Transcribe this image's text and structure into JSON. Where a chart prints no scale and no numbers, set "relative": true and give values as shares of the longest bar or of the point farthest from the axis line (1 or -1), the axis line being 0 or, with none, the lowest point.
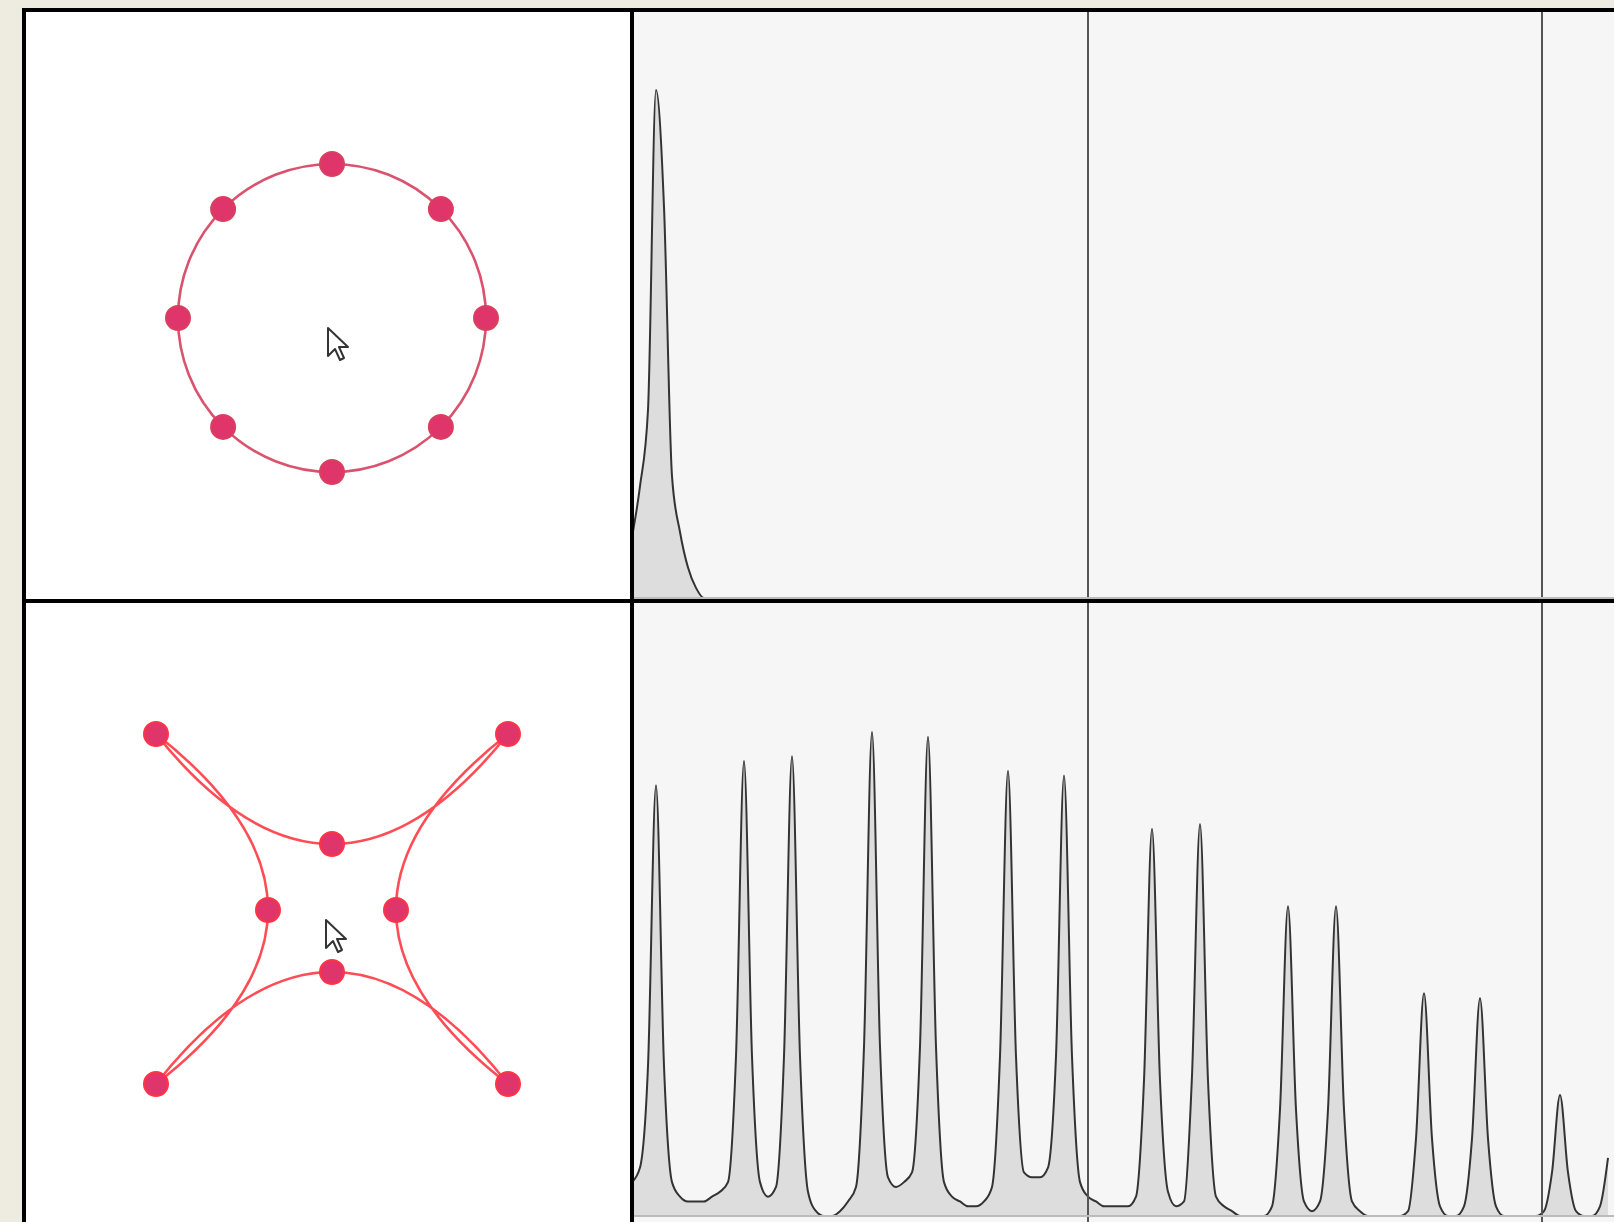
{
  "chart_data": [
    {
      "type": "area",
      "relative": true,
      "color": "#dddddd",
      "categories": [
        null,
        null,
        null,
        null,
        null,
        null,
        null,
        null,
        null,
        null,
        null,
        null,
        null,
        null,
        null,
        null,
        null,
        null,
        null,
        null,
        null,
        null,
        null,
        null,
        null,
        null,
        null,
        null,
        null,
        null,
        null,
        null,
        null,
        null,
        null,
        null,
        null,
        null,
        null,
        null,
        null,
        null,
        null,
        null,
        null,
        null,
        null,
        null,
        null,
        null,
        null,
        null,
        null,
        null,
        null,
        null,
        null,
        null,
        null,
        null,
        null,
        null,
        null,
        null,
        null,
        null,
        null,
        null,
        null,
        null,
        null,
        null,
        null,
        null,
        null,
        null,
        null,
        null,
        null,
        null,
        null,
        null,
        null,
        null,
        null,
        null,
        null,
        null,
        null,
        null,
        null,
        null,
        null,
        null,
        null,
        null,
        null,
        null,
        null,
        null,
        null,
        null,
        null,
        null,
        null,
        null,
        null,
        null,
        null,
        null,
        null,
        null,
        null,
        null,
        null,
        null,
        null,
        null,
        null,
        null,
        null,
        null,
        null
      ],
      "values": [
        0.12,
        0.22,
        0.37,
        1,
        0.77,
        0.24,
        0.13,
        0.06,
        0.02,
        0,
        0,
        0,
        0,
        0,
        0,
        0,
        0,
        0,
        0,
        0,
        0,
        0,
        0,
        0,
        0,
        0,
        0,
        0,
        0,
        0,
        0,
        0,
        0,
        0,
        0,
        0,
        0,
        0,
        0,
        0,
        0,
        0,
        0,
        0,
        0,
        0,
        0,
        0,
        0,
        0,
        0,
        0,
        0,
        0,
        0,
        0,
        0,
        0,
        0,
        0,
        0,
        0,
        0,
        0,
        0,
        0,
        0,
        0,
        0,
        0,
        0,
        0,
        0,
        0,
        0,
        0,
        0,
        0,
        0,
        0,
        0,
        0,
        0,
        0,
        0,
        0,
        0,
        0,
        0,
        0,
        0,
        0,
        0,
        0,
        0,
        0,
        0,
        0,
        0,
        0,
        0,
        0,
        0,
        0,
        0,
        0,
        0,
        0,
        0,
        0,
        0,
        0,
        0,
        0,
        0,
        0,
        0,
        0,
        0,
        0,
        0,
        0,
        0
      ]
    },
    {
      "type": "area",
      "relative": true,
      "color": "#dddddd",
      "categories": [
        null,
        null,
        null,
        null,
        null,
        null,
        null,
        null,
        null,
        null,
        null,
        null,
        null,
        null,
        null,
        null,
        null,
        null,
        null,
        null,
        null,
        null,
        null,
        null,
        null,
        null,
        null,
        null,
        null,
        null,
        null,
        null,
        null,
        null,
        null,
        null,
        null,
        null,
        null,
        null,
        null,
        null,
        null,
        null,
        null,
        null,
        null,
        null,
        null,
        null,
        null,
        null,
        null,
        null,
        null,
        null,
        null,
        null,
        null,
        null,
        null,
        null,
        null,
        null,
        null,
        null,
        null,
        null,
        null,
        null,
        null,
        null,
        null,
        null,
        null,
        null,
        null,
        null,
        null,
        null,
        null,
        null,
        null,
        null,
        null,
        null,
        null,
        null,
        null,
        null,
        null,
        null,
        null,
        null,
        null,
        null,
        null,
        null,
        null,
        null,
        null,
        null,
        null,
        null,
        null,
        null,
        null,
        null,
        null,
        null,
        null,
        null,
        null,
        null,
        null,
        null,
        null,
        null,
        null,
        null,
        null,
        null,
        null
      ],
      "values": [
        0.07,
        0.1,
        0.31,
        0.89,
        0.31,
        0.07,
        0.04,
        0.03,
        0.03,
        0.03,
        0.04,
        0.05,
        0.07,
        0.33,
        0.94,
        0.33,
        0.07,
        0.04,
        0.06,
        0.33,
        0.95,
        0.33,
        0.05,
        0.01,
        0,
        0,
        0.01,
        0.03,
        0.06,
        0.35,
        1,
        0.35,
        0.08,
        0.06,
        0.07,
        0.09,
        0.35,
        0.99,
        0.35,
        0.07,
        0.04,
        0.03,
        0.02,
        0.02,
        0.03,
        0.06,
        0.33,
        0.92,
        0.33,
        0.09,
        0.08,
        0.08,
        0.1,
        0.33,
        0.91,
        0.33,
        0.07,
        0.04,
        0.03,
        0.02,
        0.02,
        0.02,
        0.02,
        0.04,
        0.28,
        0.8,
        0.28,
        0.05,
        0.02,
        0.03,
        0.29,
        0.81,
        0.28,
        0.04,
        0.02,
        0.01,
        0,
        0,
        0,
        0,
        0.02,
        0.22,
        0.64,
        0.22,
        0.03,
        0.01,
        0.03,
        0.22,
        0.64,
        0.22,
        0.03,
        0.01,
        0,
        0,
        0,
        0,
        0,
        0.01,
        0.16,
        0.46,
        0.16,
        0.02,
        0,
        0,
        0.02,
        0.16,
        0.45,
        0.16,
        0.02,
        0,
        0,
        0,
        0,
        0,
        0.01,
        0.09,
        0.25,
        0.09,
        0.01,
        0,
        0,
        0.02,
        0.12
      ]
    }
  ]
}
